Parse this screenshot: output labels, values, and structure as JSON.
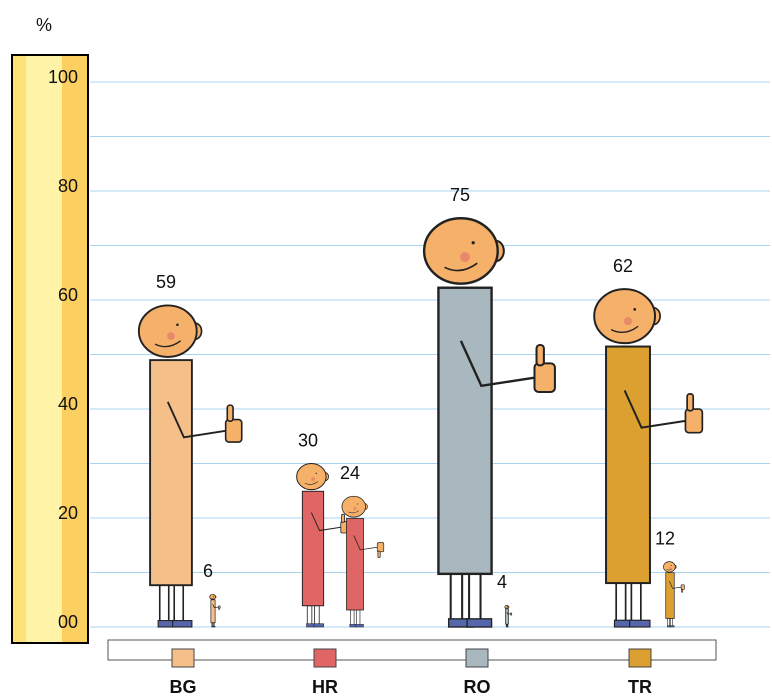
{
  "chart_data": {
    "type": "pictogram",
    "y_label": "%",
    "categories": [
      "BG",
      "HR",
      "RO",
      "TR"
    ],
    "colors": [
      "#f5bf8a",
      "#e06666",
      "#a9b8bf",
      "#dca030"
    ],
    "series": [
      {
        "thumb": "up",
        "values": [
          59,
          30,
          75,
          62
        ]
      },
      {
        "thumb": "down",
        "values": [
          6,
          24,
          4,
          12
        ]
      }
    ],
    "ylim": [
      0,
      100
    ],
    "yticks": [
      {
        "value": 0,
        "label": "00"
      },
      20,
      40,
      60,
      80,
      100
    ],
    "minor_grid": [
      10,
      30,
      50,
      70,
      90
    ],
    "grid": true
  }
}
